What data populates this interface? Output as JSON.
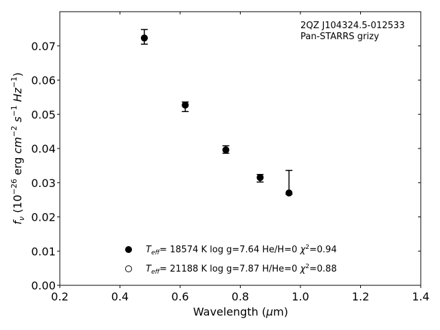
{
  "chart_data": {
    "type": "scatter",
    "title": "",
    "xlabel": "Wavelength (μm)",
    "ylabel": "f_ν (10^-26 erg cm^-2 s^-1 Hz^-1)",
    "xlim": [
      0.2,
      1.4
    ],
    "ylim": [
      0.0,
      0.08
    ],
    "x_ticks": [
      "0.2",
      "0.4",
      "0.6",
      "0.8",
      "1.0",
      "1.2",
      "1.4"
    ],
    "y_ticks": [
      "0.00",
      "0.01",
      "0.02",
      "0.03",
      "0.04",
      "0.05",
      "0.06",
      "0.07"
    ],
    "grid": false,
    "annotation": [
      "2QZ J104324.5-012533",
      "Pan-STARRS grizy"
    ],
    "series": [
      {
        "name": "T_eff= 18574 K  log g=7.64  He/H=0  χ²=0.94",
        "marker": "filled-circle",
        "x": [
          0.481,
          0.617,
          0.752,
          0.866,
          0.962
        ],
        "y": [
          0.0723,
          0.0527,
          0.0396,
          0.0315,
          0.027
        ]
      },
      {
        "name": "T_eff= 21188 K  log g=7.87  H/He=0  χ²=0.88",
        "marker": "open-circle",
        "x": [
          0.481,
          0.617,
          0.752,
          0.866,
          0.962
        ],
        "y": [
          0.0723,
          0.0527,
          0.0396,
          0.0315,
          0.027
        ]
      }
    ],
    "observed": {
      "marker": "errorbar",
      "x": [
        0.481,
        0.617,
        0.752,
        0.866,
        0.962
      ],
      "y": [
        0.0725,
        0.0522,
        0.0397,
        0.0313,
        0.0269
      ],
      "y_low": [
        0.0705,
        0.0508,
        0.0386,
        0.0302,
        0.0266
      ],
      "y_high": [
        0.0748,
        0.0536,
        0.0408,
        0.0324,
        0.0336
      ]
    },
    "legend": {
      "placement": "lower-center",
      "entries": [
        {
          "marker": "filled",
          "teff_value": "= 18574 K  log g=7.64  He/H=0  ",
          "chi_value": "=0.94"
        },
        {
          "marker": "open",
          "teff_value": "= 21188 K  log g=7.87  H/He=0  ",
          "chi_value": "=0.88"
        }
      ]
    }
  }
}
